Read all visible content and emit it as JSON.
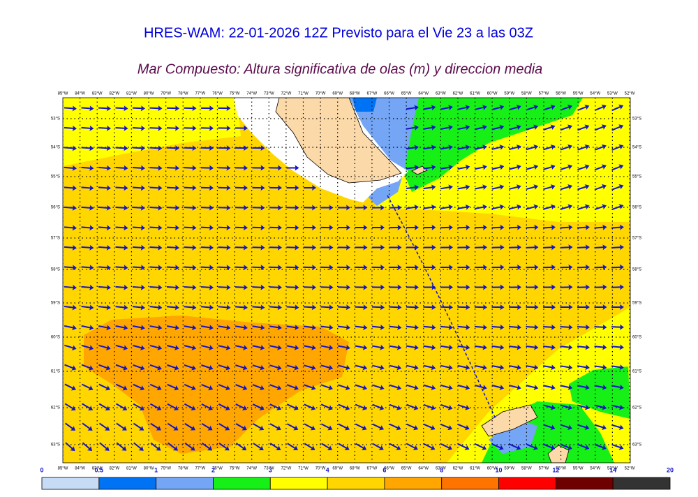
{
  "title": "HRES-WAM: 22-01-2026 12Z Previsto para el Vie 23 a las 03Z",
  "subtitle": "Mar Compuesto: Altura significativa de olas (m) y direccion media",
  "map": {
    "longitudes": [
      "85°W",
      "84°W",
      "83°W",
      "82°W",
      "81°W",
      "80°W",
      "79°W",
      "78°W",
      "77°W",
      "76°W",
      "75°W",
      "74°W",
      "73°W",
      "72°W",
      "71°W",
      "70°W",
      "69°W",
      "68°W",
      "67°W",
      "66°W",
      "65°W",
      "64°W",
      "63°W",
      "62°W",
      "61°W",
      "60°W",
      "59°W",
      "58°W",
      "57°W",
      "56°W",
      "55°W",
      "54°W",
      "53°W",
      "52°W"
    ],
    "latitudes": [
      "53°S",
      "54°S",
      "55°S",
      "56°S",
      "57°S",
      "58°S",
      "59°S",
      "60°S",
      "61°S",
      "62°S",
      "63°S"
    ]
  },
  "colorbar": {
    "ticks": [
      0,
      0.5,
      1,
      2,
      3,
      4,
      6,
      8,
      10,
      12,
      14,
      20
    ],
    "colors": [
      "#c6dcf6",
      "#0073f5",
      "#74a6f5",
      "#16f016",
      "#ffff00",
      "#ffd600",
      "#ffa600",
      "#ff7400",
      "#ff0000",
      "#6e0000",
      "#333333"
    ]
  }
}
